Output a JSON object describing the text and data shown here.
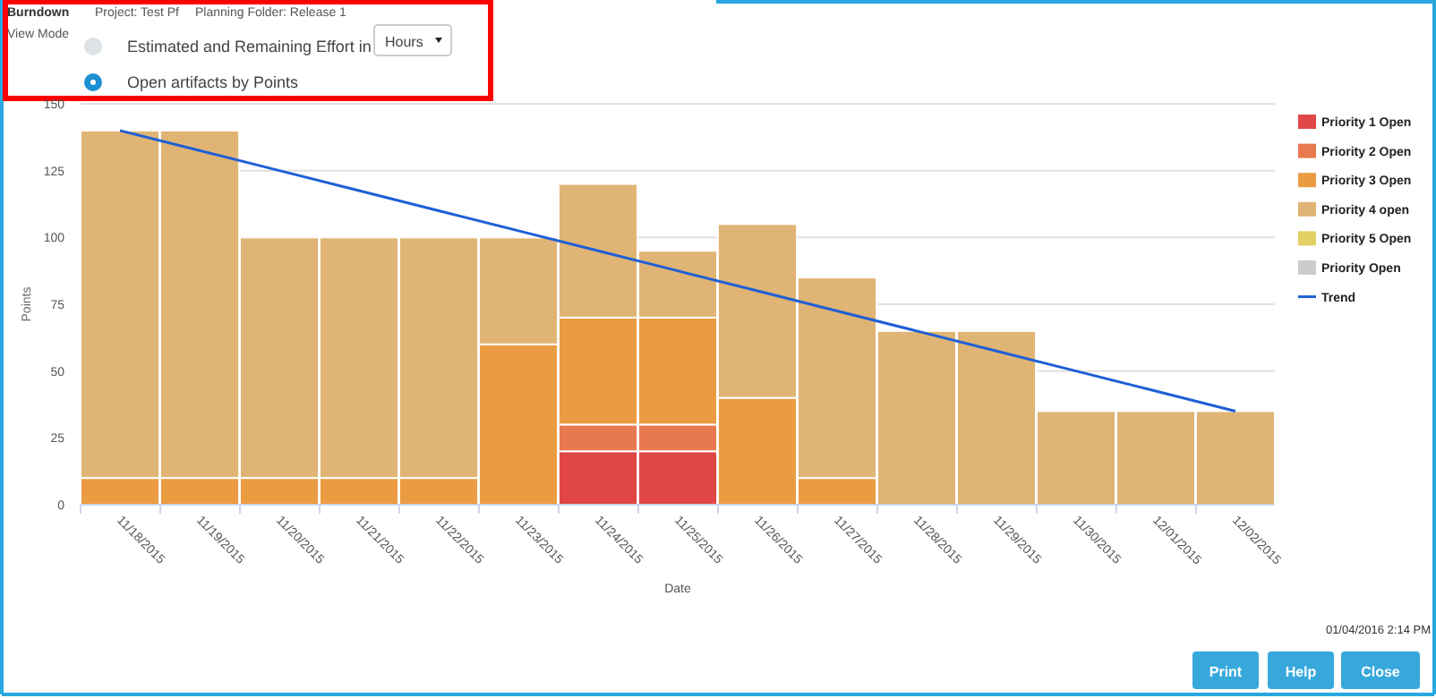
{
  "chart_data": {
    "type": "bar",
    "title": "Burndown",
    "subtitle": "Project: Test Pf",
    "xlabel": "Date",
    "ylabel": "Points",
    "annotations": [
      "Planning Folder: Release 1",
      "View Mode",
      "Estimated and Remaining Effort in",
      "Hours",
      "Open artifacts by Points",
      "01/04/2016 2:14 PM",
      "Print",
      "Help",
      "Close"
    ],
    "categories": [
      "11/18/2015",
      "11/19/2015",
      "11/20/2015",
      "11/21/2015",
      "11/22/2015",
      "11/23/2015",
      "11/24/2015",
      "11/25/2015",
      "11/26/2015",
      "11/27/2015",
      "11/28/2015",
      "11/29/2015",
      "11/30/2015",
      "12/01/2015",
      "12/02/2015"
    ],
    "stacked": true,
    "ylim": [
      0,
      150
    ],
    "yticks": [
      0,
      25,
      50,
      75,
      100,
      125,
      150
    ],
    "grid": "y",
    "legend": "right",
    "series": [
      {
        "name": "Priority 1 Open",
        "color": "#e04646",
        "values": [
          0,
          0,
          0,
          0,
          0,
          0,
          20,
          20,
          0,
          0,
          0,
          0,
          0,
          0,
          0
        ]
      },
      {
        "name": "Priority 2 Open",
        "color": "#e8784e",
        "values": [
          0,
          0,
          0,
          0,
          0,
          0,
          10,
          10,
          0,
          0,
          0,
          0,
          0,
          0,
          0
        ]
      },
      {
        "name": "Priority 3 Open",
        "color": "#eb9c42",
        "values": [
          10,
          10,
          10,
          10,
          10,
          60,
          40,
          40,
          40,
          10,
          0,
          0,
          0,
          0,
          0
        ]
      },
      {
        "name": "Priority 4 open",
        "color": "#e0b474",
        "values": [
          130,
          130,
          90,
          90,
          90,
          40,
          50,
          25,
          65,
          75,
          65,
          65,
          35,
          35,
          35
        ]
      },
      {
        "name": "Priority 5 Open",
        "color": "#e2d062",
        "values": [
          0,
          0,
          0,
          0,
          0,
          0,
          0,
          0,
          0,
          0,
          0,
          0,
          0,
          0,
          0
        ]
      },
      {
        "name": "Priority Open",
        "color": "#cccccc",
        "values": [
          0,
          0,
          0,
          0,
          0,
          0,
          0,
          0,
          0,
          0,
          0,
          0,
          0,
          0,
          0
        ]
      },
      {
        "name": "Trend",
        "type": "line",
        "color": "#1f5fd6",
        "values": [
          140,
          132.5,
          125,
          117.5,
          110,
          102.5,
          95,
          87.5,
          80,
          72.5,
          65,
          57.5,
          50,
          42.5,
          35
        ]
      }
    ]
  }
}
